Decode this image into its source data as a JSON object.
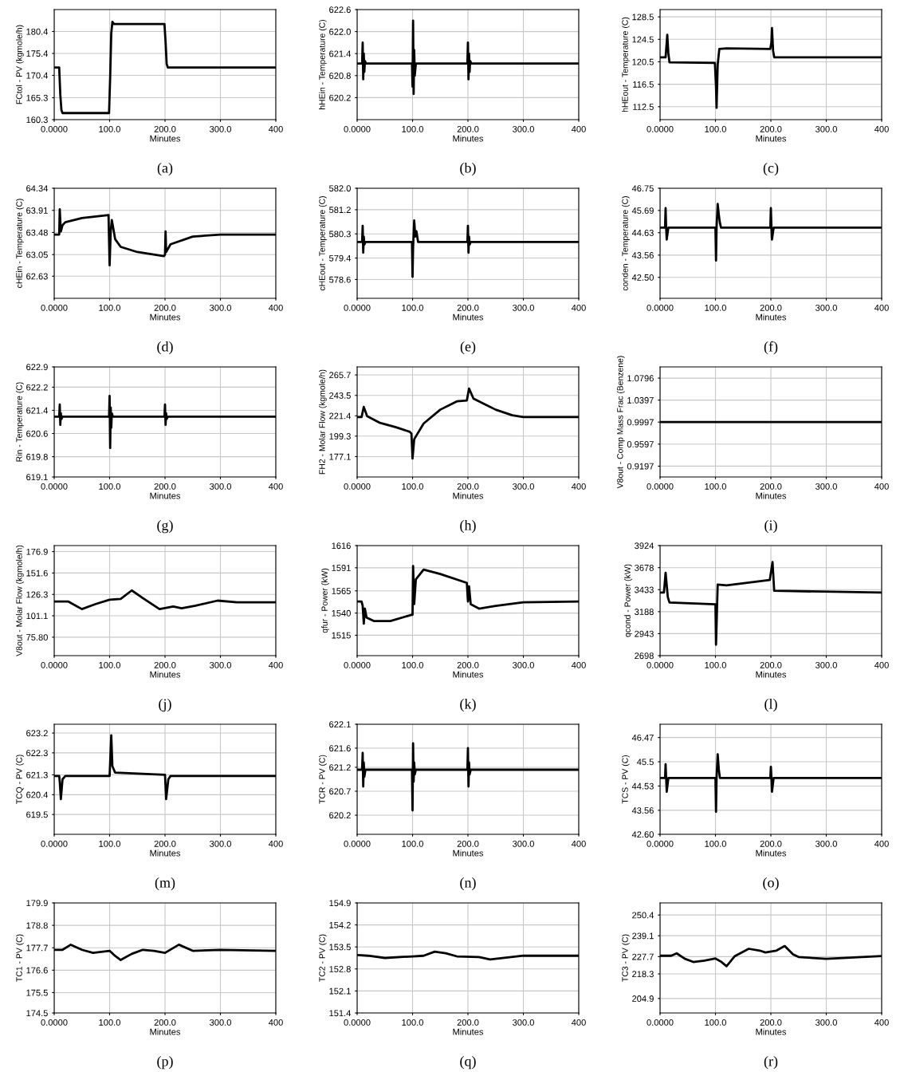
{
  "chart_data": [
    {
      "type": "line",
      "xlabel": "Minutes",
      "ylabel": "FCtol - PV (kgmole/h)",
      "annotations": [
        "(a)"
      ],
      "xlim": [
        0,
        400
      ],
      "xticks": [
        {
          "value": 0,
          "label": "0.0000"
        },
        {
          "value": 100,
          "label": "100.0"
        },
        {
          "value": 200,
          "label": "200.0"
        },
        {
          "value": 300,
          "label": "300.0"
        },
        {
          "value": 400,
          "label": "400"
        }
      ],
      "ylim": [
        160.3,
        185.4
      ],
      "yticks": [
        160.3,
        165.3,
        170.4,
        175.4,
        180.4
      ],
      "grid": true,
      "series": [
        {
          "color": "#000000",
          "x": [
            0,
            9,
            11,
            13,
            15,
            20,
            99,
            101,
            103,
            105,
            108,
            199,
            201,
            203,
            205,
            400
          ],
          "values": [
            172.2,
            172.2,
            166,
            162.5,
            161.8,
            161.8,
            161.8,
            170,
            180,
            182.6,
            182.1,
            182.1,
            178,
            173,
            172.2,
            172.2
          ]
        }
      ]
    },
    {
      "type": "line",
      "xlabel": "Minutes",
      "ylabel": "hHEin - Temperature (C)",
      "annotations": [
        "(b)"
      ],
      "xlim": [
        0,
        400
      ],
      "xticks": [
        {
          "value": 0,
          "label": "0.0000"
        },
        {
          "value": 100,
          "label": "100.0"
        },
        {
          "value": 200,
          "label": "200.0"
        },
        {
          "value": 300,
          "label": "300.0"
        },
        {
          "value": 400,
          "label": "400"
        }
      ],
      "ylim": [
        619.6,
        622.6
      ],
      "yticks": [
        620.2,
        620.8,
        621.4,
        {
          "value": 622.0,
          "label": "622.0"
        },
        622.6
      ],
      "grid": true,
      "series": [
        {
          "color": "#000000",
          "x": [
            0,
            9,
            10,
            11,
            12,
            13,
            14,
            16,
            99,
            100,
            101,
            102,
            103,
            104,
            106,
            199,
            200,
            201,
            202,
            203,
            204,
            206,
            400
          ],
          "values": [
            621.13,
            621.13,
            621.7,
            620.7,
            621.4,
            620.9,
            621.2,
            621.13,
            621.13,
            620.5,
            622.3,
            620.3,
            621.5,
            620.8,
            621.13,
            621.13,
            621.7,
            620.7,
            621.4,
            620.9,
            621.2,
            621.13,
            621.13
          ]
        }
      ]
    },
    {
      "type": "line",
      "xlabel": "Minutes",
      "ylabel": "hHEout - Temperature (C)",
      "annotations": [
        "(c)"
      ],
      "xlim": [
        0,
        400
      ],
      "xticks": [
        {
          "value": 0,
          "label": "0.0000"
        },
        {
          "value": 100,
          "label": "100.0"
        },
        {
          "value": 200,
          "label": "200.0"
        },
        {
          "value": 300,
          "label": "300.0"
        },
        {
          "value": 400,
          "label": "400"
        }
      ],
      "ylim": [
        110.2,
        129.8
      ],
      "yticks": [
        112.5,
        116.5,
        120.5,
        124.5,
        128.5
      ],
      "grid": true,
      "series": [
        {
          "color": "#000000",
          "x": [
            0,
            10,
            13,
            15,
            17,
            99,
            101,
            102,
            104,
            107,
            120,
            199,
            201,
            202,
            204,
            206,
            400
          ],
          "values": [
            121.3,
            121.3,
            125.3,
            122,
            120.4,
            120.3,
            116,
            112.3,
            120,
            122.8,
            122.9,
            122.8,
            124,
            126.5,
            122.5,
            121.3,
            121.3
          ]
        }
      ]
    },
    {
      "type": "line",
      "xlabel": "Minutes",
      "ylabel": "cHEin - Temperature (C)",
      "annotations": [
        "(d)"
      ],
      "xlim": [
        0,
        400
      ],
      "xticks": [
        {
          "value": 0,
          "label": "0.0000"
        },
        {
          "value": 100,
          "label": "100.0"
        },
        {
          "value": 200,
          "label": "200.0"
        },
        {
          "value": 300,
          "label": "300.0"
        },
        {
          "value": 400,
          "label": "400"
        }
      ],
      "ylim": [
        62.2,
        64.34
      ],
      "yticks": [
        62.63,
        63.05,
        63.48,
        63.91,
        64.34
      ],
      "grid": true,
      "series": [
        {
          "color": "#000000",
          "x": [
            0,
            9,
            10,
            12,
            15,
            20,
            50,
            98,
            100,
            102,
            104,
            106,
            110,
            120,
            150,
            198,
            200,
            201,
            202,
            210,
            250,
            300,
            400
          ],
          "values": [
            63.44,
            63.44,
            63.93,
            63.5,
            63.62,
            63.68,
            63.76,
            63.82,
            62.84,
            63.5,
            63.72,
            63.6,
            63.35,
            63.2,
            63.1,
            63.02,
            63.05,
            63.5,
            63.1,
            63.25,
            63.4,
            63.44,
            63.44
          ]
        }
      ]
    },
    {
      "type": "line",
      "xlabel": "Minutes",
      "ylabel": "cHEout - Temperature (C)",
      "annotations": [
        "(e)"
      ],
      "xlim": [
        0,
        400
      ],
      "xticks": [
        {
          "value": 0,
          "label": "0.0000"
        },
        {
          "value": 100,
          "label": "100.0"
        },
        {
          "value": 200,
          "label": "200.0"
        },
        {
          "value": 300,
          "label": "300.0"
        },
        {
          "value": 400,
          "label": "400"
        }
      ],
      "ylim": [
        577.9,
        582.0
      ],
      "yticks": [
        578.6,
        579.4,
        580.3,
        581.2,
        {
          "value": 582.0,
          "label": "582.0"
        }
      ],
      "grid": true,
      "series": [
        {
          "color": "#000000",
          "x": [
            0,
            9,
            10,
            11,
            12,
            13,
            15,
            99,
            100,
            101,
            103,
            105,
            107,
            110,
            199,
            200,
            201,
            202,
            203,
            205,
            400
          ],
          "values": [
            580.0,
            580.0,
            580.6,
            579.6,
            580.2,
            579.9,
            580.0,
            580.0,
            578.7,
            579.8,
            580.8,
            580.2,
            580.4,
            580.0,
            580.0,
            580.6,
            579.6,
            580.2,
            579.9,
            580.0,
            580.0
          ]
        }
      ]
    },
    {
      "type": "line",
      "xlabel": "Minutes",
      "ylabel": "conden - Temperature (C)",
      "annotations": [
        "(f)"
      ],
      "xlim": [
        0,
        400
      ],
      "xticks": [
        {
          "value": 0,
          "label": "0.0000"
        },
        {
          "value": 100,
          "label": "100.0"
        },
        {
          "value": 200,
          "label": "200.0"
        },
        {
          "value": 300,
          "label": "300.0"
        },
        {
          "value": 400,
          "label": "400"
        }
      ],
      "ylim": [
        41.5,
        46.75
      ],
      "yticks": [
        {
          "value": 42.5,
          "label": "42.50"
        },
        43.56,
        44.63,
        45.69,
        46.75
      ],
      "grid": true,
      "series": [
        {
          "color": "#000000",
          "x": [
            0,
            9,
            10,
            11,
            12,
            15,
            99,
            100,
            101,
            102,
            104,
            106,
            108,
            110,
            199,
            200,
            201,
            202,
            205,
            400
          ],
          "values": [
            44.87,
            44.87,
            45.8,
            44.87,
            44.3,
            44.87,
            44.87,
            44.87,
            43.3,
            44.87,
            46.0,
            45.5,
            45.1,
            44.87,
            44.87,
            45.8,
            44.87,
            44.3,
            44.87,
            44.87
          ]
        }
      ]
    },
    {
      "type": "line",
      "xlabel": "Minutes",
      "ylabel": "Rin - Temperature (C)",
      "annotations": [
        "(g)"
      ],
      "xlim": [
        0,
        400
      ],
      "xticks": [
        {
          "value": 0,
          "label": "0.0000"
        },
        {
          "value": 100,
          "label": "100.0"
        },
        {
          "value": 200,
          "label": "200.0"
        },
        {
          "value": 300,
          "label": "300.0"
        },
        {
          "value": 400,
          "label": "400"
        }
      ],
      "ylim": [
        619.1,
        622.9
      ],
      "yticks": [
        619.1,
        619.8,
        620.6,
        621.4,
        622.2,
        622.9
      ],
      "grid": true,
      "series": [
        {
          "color": "#000000",
          "x": [
            0,
            9,
            10,
            11,
            12,
            13,
            15,
            99,
            100,
            101,
            102,
            103,
            104,
            106,
            199,
            200,
            201,
            202,
            203,
            205,
            400
          ],
          "values": [
            621.18,
            621.18,
            621.6,
            620.9,
            621.3,
            621.1,
            621.18,
            621.18,
            621.9,
            620.1,
            621.5,
            620.8,
            621.3,
            621.18,
            621.18,
            621.6,
            620.9,
            621.3,
            621.1,
            621.18,
            621.18
          ]
        }
      ]
    },
    {
      "type": "line",
      "xlabel": "Minutes",
      "ylabel": "FH2 - Molar Flow (kgmole/h)",
      "annotations": [
        "(h)"
      ],
      "xlim": [
        0,
        400
      ],
      "xticks": [
        {
          "value": 0,
          "label": "0.0000"
        },
        {
          "value": 100,
          "label": "100.0"
        },
        {
          "value": 200,
          "label": "200.0"
        },
        {
          "value": 300,
          "label": "300.0"
        },
        {
          "value": 400,
          "label": "400"
        }
      ],
      "ylim": [
        155,
        274.4
      ],
      "yticks": [
        177.1,
        199.3,
        221.4,
        243.5,
        265.7
      ],
      "grid": true,
      "series": [
        {
          "color": "#000000",
          "x": [
            0,
            8,
            12,
            18,
            40,
            70,
            95,
            98,
            100,
            103,
            120,
            150,
            180,
            198,
            202,
            210,
            250,
            280,
            300,
            400
          ],
          "values": [
            220,
            220,
            231,
            221,
            214,
            209,
            204,
            202,
            175,
            196,
            213,
            228,
            237,
            238,
            251,
            240,
            228,
            222,
            220,
            220
          ]
        }
      ]
    },
    {
      "type": "line",
      "xlabel": "Minutes",
      "ylabel": "V8out - Comp Mass Frac (Benzene)",
      "annotations": [
        "(i)"
      ],
      "xlim": [
        0,
        400
      ],
      "xticks": [
        {
          "value": 0,
          "label": "0.0000"
        },
        {
          "value": 100,
          "label": "100.0"
        },
        {
          "value": 200,
          "label": "200.0"
        },
        {
          "value": 300,
          "label": "300.0"
        },
        {
          "value": 400,
          "label": "400"
        }
      ],
      "ylim": [
        0.9,
        1.1
      ],
      "yticks": [
        0.9197,
        0.9597,
        0.9997,
        1.0397,
        1.0796
      ],
      "grid": true,
      "series": [
        {
          "color": "#000000",
          "x": [
            0,
            400
          ],
          "values": [
            0.9997,
            0.9997
          ]
        }
      ]
    },
    {
      "type": "line",
      "xlabel": "Minutes",
      "ylabel": "V8out - Molar Flow (kgmole/h)",
      "annotations": [
        "(j)"
      ],
      "xlim": [
        0,
        400
      ],
      "xticks": [
        {
          "value": 0,
          "label": "0.0000"
        },
        {
          "value": 100,
          "label": "100.0"
        },
        {
          "value": 200,
          "label": "200.0"
        },
        {
          "value": 300,
          "label": "300.0"
        },
        {
          "value": 400,
          "label": "400"
        }
      ],
      "ylim": [
        54,
        184
      ],
      "yticks": [
        {
          "value": 75.8,
          "label": "75.80"
        },
        101.1,
        126.3,
        151.6,
        176.9
      ],
      "grid": true,
      "series": [
        {
          "color": "#000000",
          "x": [
            0,
            25,
            50,
            75,
            100,
            120,
            140,
            160,
            190,
            215,
            230,
            255,
            295,
            330,
            400
          ],
          "values": [
            118,
            118,
            109,
            115,
            120,
            121,
            131,
            122,
            109,
            112,
            110,
            113,
            119,
            117,
            117
          ]
        }
      ]
    },
    {
      "type": "line",
      "xlabel": "Minutes",
      "ylabel": "qfur - Power (kW)",
      "annotations": [
        "(k)"
      ],
      "xlim": [
        0,
        400
      ],
      "xticks": [
        {
          "value": 0,
          "label": "0.0000"
        },
        {
          "value": 100,
          "label": "100.0"
        },
        {
          "value": 200,
          "label": "200.0"
        },
        {
          "value": 300,
          "label": "300.0"
        },
        {
          "value": 400,
          "label": "400"
        }
      ],
      "ylim": [
        1492,
        1616
      ],
      "yticks": [
        1515,
        1540,
        1565,
        1591,
        1616
      ],
      "grid": true,
      "series": [
        {
          "color": "#000000",
          "x": [
            0,
            8,
            10,
            12,
            14,
            17,
            30,
            60,
            98,
            100,
            101,
            103,
            106,
            120,
            150,
            198,
            200,
            202,
            205,
            220,
            250,
            300,
            400
          ],
          "values": [
            1553,
            1553,
            1548,
            1528,
            1545,
            1535,
            1531,
            1531,
            1538,
            1538,
            1593,
            1550,
            1578,
            1589,
            1584,
            1574,
            1553,
            1570,
            1550,
            1545,
            1548,
            1552,
            1553
          ]
        }
      ]
    },
    {
      "type": "line",
      "xlabel": "Minutes",
      "ylabel": "qcond - Power (kW)",
      "annotations": [
        "(l)"
      ],
      "xlim": [
        0,
        400
      ],
      "xticks": [
        {
          "value": 0,
          "label": "0.0000"
        },
        {
          "value": 100,
          "label": "100.0"
        },
        {
          "value": 200,
          "label": "200.0"
        },
        {
          "value": 300,
          "label": "300.0"
        },
        {
          "value": 400,
          "label": "400"
        }
      ],
      "ylim": [
        2698,
        3924
      ],
      "yticks": [
        2698,
        2943,
        3188,
        3433,
        3678,
        3924
      ],
      "grid": true,
      "series": [
        {
          "color": "#000000",
          "x": [
            0,
            7,
            10,
            14,
            17,
            100,
            101,
            104,
            120,
            198,
            203,
            206,
            400
          ],
          "values": [
            3400,
            3400,
            3620,
            3350,
            3290,
            3270,
            2820,
            3490,
            3480,
            3540,
            3740,
            3420,
            3400
          ]
        }
      ]
    },
    {
      "type": "line",
      "xlabel": "Minutes",
      "ylabel": "TCQ - PV (C)",
      "annotations": [
        "(m)"
      ],
      "xlim": [
        0,
        400
      ],
      "xticks": [
        {
          "value": 0,
          "label": "0.0000"
        },
        {
          "value": 100,
          "label": "100.0"
        },
        {
          "value": 200,
          "label": "200.0"
        },
        {
          "value": 300,
          "label": "300.0"
        },
        {
          "value": 400,
          "label": "400"
        }
      ],
      "ylim": [
        618.6,
        623.6
      ],
      "yticks": [
        619.5,
        620.4,
        621.3,
        622.3,
        623.2
      ],
      "grid": true,
      "series": [
        {
          "color": "#000000",
          "x": [
            0,
            9,
            10,
            12,
            15,
            20,
            100,
            103,
            105,
            110,
            200,
            202,
            206,
            210,
            400
          ],
          "values": [
            621.25,
            621.25,
            621.0,
            620.2,
            621.1,
            621.25,
            621.25,
            623.1,
            621.7,
            621.4,
            621.3,
            620.2,
            621.1,
            621.25,
            621.25
          ]
        }
      ]
    },
    {
      "type": "line",
      "xlabel": "Minutes",
      "ylabel": "TCR - PV (C)",
      "annotations": [
        "(n)"
      ],
      "xlim": [
        0,
        400
      ],
      "xticks": [
        {
          "value": 0,
          "label": "0.0000"
        },
        {
          "value": 100,
          "label": "100.0"
        },
        {
          "value": 200,
          "label": "200.0"
        },
        {
          "value": 300,
          "label": "300.0"
        },
        {
          "value": 400,
          "label": "400"
        }
      ],
      "ylim": [
        619.8,
        622.1
      ],
      "yticks": [
        620.2,
        620.7,
        621.2,
        621.6,
        622.1
      ],
      "grid": true,
      "series": [
        {
          "color": "#000000",
          "x": [
            0,
            9,
            10,
            11,
            12,
            13,
            15,
            99,
            100,
            101,
            102,
            103,
            104,
            106,
            199,
            200,
            201,
            202,
            203,
            205,
            400
          ],
          "values": [
            621.15,
            621.15,
            621.5,
            620.8,
            621.3,
            621.0,
            621.15,
            621.15,
            620.3,
            621.7,
            620.9,
            621.3,
            621.05,
            621.15,
            621.15,
            621.6,
            620.8,
            621.3,
            621.05,
            621.15,
            621.15
          ]
        }
      ]
    },
    {
      "type": "line",
      "xlabel": "Minutes",
      "ylabel": "TCS - PV (C)",
      "annotations": [
        "(o)"
      ],
      "xlim": [
        0,
        400
      ],
      "xticks": [
        {
          "value": 0,
          "label": "0.0000"
        },
        {
          "value": 100,
          "label": "100.0"
        },
        {
          "value": 200,
          "label": "200.0"
        },
        {
          "value": 300,
          "label": "300.0"
        },
        {
          "value": 400,
          "label": "400"
        }
      ],
      "ylim": [
        42.6,
        47.0
      ],
      "yticks": [
        {
          "value": 42.6,
          "label": "42.60"
        },
        43.56,
        44.53,
        45.5,
        46.47
      ],
      "grid": true,
      "series": [
        {
          "color": "#000000",
          "x": [
            0,
            9,
            10,
            11,
            12,
            15,
            99,
            100,
            101,
            102,
            104,
            106,
            108,
            199,
            200,
            201,
            202,
            205,
            400
          ],
          "values": [
            44.85,
            44.85,
            45.4,
            44.85,
            44.3,
            44.85,
            44.85,
            44.85,
            43.5,
            44.85,
            45.8,
            45.2,
            44.85,
            44.85,
            45.3,
            44.85,
            44.3,
            44.85,
            44.85
          ]
        }
      ]
    },
    {
      "type": "line",
      "xlabel": "Minutes",
      "ylabel": "TC1 - PV (C)",
      "annotations": [
        "(p)"
      ],
      "xlim": [
        0,
        400
      ],
      "xticks": [
        {
          "value": 0,
          "label": "0.0000"
        },
        {
          "value": 100,
          "label": "100.0"
        },
        {
          "value": 200,
          "label": "200.0"
        },
        {
          "value": 300,
          "label": "300.0"
        },
        {
          "value": 400,
          "label": "400"
        }
      ],
      "ylim": [
        174.5,
        179.9
      ],
      "yticks": [
        174.5,
        175.5,
        176.6,
        177.7,
        178.8,
        179.9
      ],
      "grid": true,
      "series": [
        {
          "color": "#000000",
          "x": [
            0,
            15,
            30,
            50,
            70,
            100,
            110,
            120,
            140,
            160,
            180,
            200,
            225,
            250,
            300,
            400
          ],
          "values": [
            177.6,
            177.6,
            177.85,
            177.6,
            177.45,
            177.55,
            177.3,
            177.1,
            177.4,
            177.6,
            177.55,
            177.45,
            177.85,
            177.55,
            177.6,
            177.55
          ]
        }
      ]
    },
    {
      "type": "line",
      "xlabel": "Minutes",
      "ylabel": "TC2 - PV (C)",
      "annotations": [
        "(q)"
      ],
      "xlim": [
        0,
        400
      ],
      "xticks": [
        {
          "value": 0,
          "label": "0.0000"
        },
        {
          "value": 100,
          "label": "100.0"
        },
        {
          "value": 200,
          "label": "200.0"
        },
        {
          "value": 300,
          "label": "300.0"
        },
        {
          "value": 400,
          "label": "400"
        }
      ],
      "ylim": [
        151.4,
        154.9
      ],
      "yticks": [
        151.4,
        152.1,
        152.8,
        153.5,
        154.2,
        154.9
      ],
      "grid": true,
      "series": [
        {
          "color": "#000000",
          "x": [
            0,
            20,
            50,
            100,
            120,
            140,
            160,
            180,
            220,
            240,
            300,
            400
          ],
          "values": [
            153.24,
            153.22,
            153.15,
            153.2,
            153.22,
            153.35,
            153.3,
            153.2,
            153.18,
            153.1,
            153.22,
            153.22
          ]
        }
      ]
    },
    {
      "type": "line",
      "xlabel": "Minutes",
      "ylabel": "TC3 - PV (C)",
      "annotations": [
        "(r)"
      ],
      "xlim": [
        0,
        400
      ],
      "xticks": [
        {
          "value": 0,
          "label": "0.0000"
        },
        {
          "value": 100,
          "label": "100.0"
        },
        {
          "value": 200,
          "label": "200.0"
        },
        {
          "value": 300,
          "label": "300.0"
        },
        {
          "value": 400,
          "label": "400"
        }
      ],
      "ylim": [
        197,
        257
      ],
      "yticks": [
        204.9,
        218.3,
        227.7,
        239.1,
        250.4
      ],
      "grid": true,
      "series": [
        {
          "color": "#000000",
          "x": [
            0,
            20,
            30,
            45,
            60,
            80,
            100,
            110,
            120,
            135,
            160,
            180,
            190,
            210,
            225,
            240,
            250,
            300,
            400
          ],
          "values": [
            228.2,
            228.2,
            229.5,
            226.5,
            224.8,
            225.5,
            226.7,
            225,
            222.5,
            228,
            232,
            231,
            230,
            231,
            233.5,
            229,
            227.5,
            226.5,
            228
          ]
        }
      ]
    }
  ]
}
